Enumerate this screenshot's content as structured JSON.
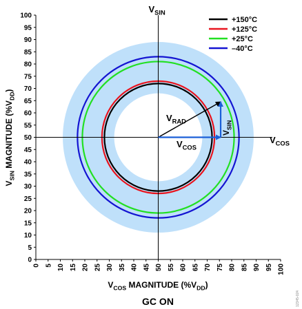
{
  "chart_data": {
    "type": "scatter",
    "title": "GC ON",
    "xlabel": {
      "main": "V",
      "sub": "COS",
      "rest": " MAGNITUDE (%V",
      "sub2": "DD",
      "end": ")"
    },
    "ylabel": {
      "main": "V",
      "sub": "SIN",
      "rest": " MAGNITUDE (%V",
      "sub2": "DD",
      "end": ")"
    },
    "xlim": [
      0,
      100
    ],
    "ylim": [
      0,
      100
    ],
    "x_ticks": [
      0,
      5,
      10,
      15,
      20,
      25,
      30,
      35,
      40,
      45,
      50,
      55,
      60,
      65,
      70,
      75,
      80,
      85,
      90,
      95,
      100
    ],
    "y_ticks": [
      0,
      5,
      10,
      15,
      20,
      25,
      30,
      35,
      40,
      45,
      50,
      55,
      60,
      65,
      70,
      75,
      80,
      85,
      90,
      95,
      100
    ],
    "grid": false,
    "legend_position": "top-right",
    "center": [
      50,
      50
    ],
    "band": {
      "inner_radius": 18,
      "outer_radius": 39,
      "color": "#bfe0fa"
    },
    "series": [
      {
        "name": "+150°C",
        "radius": 22,
        "color": "#000000"
      },
      {
        "name": "+125°C",
        "radius": 23,
        "color": "#e8141e"
      },
      {
        "name": "+25°C",
        "radius": 31,
        "color": "#22e022"
      },
      {
        "name": "–40°C",
        "radius": 33,
        "color": "#1414d2"
      }
    ],
    "axis_labels": {
      "vsin": {
        "main": "V",
        "sub": "SIN"
      },
      "vcos": {
        "main": "V",
        "sub": "COS"
      }
    },
    "vectors": {
      "vrad": {
        "main": "V",
        "sub": "RAD",
        "tip": [
          75.5,
          64.5
        ]
      },
      "vcos": {
        "main": "V",
        "sub": "COS",
        "tip": [
          75.5,
          50
        ]
      },
      "vsin": {
        "main": "V",
        "sub": "SIN"
      }
    },
    "figure_id": "12345-024"
  }
}
